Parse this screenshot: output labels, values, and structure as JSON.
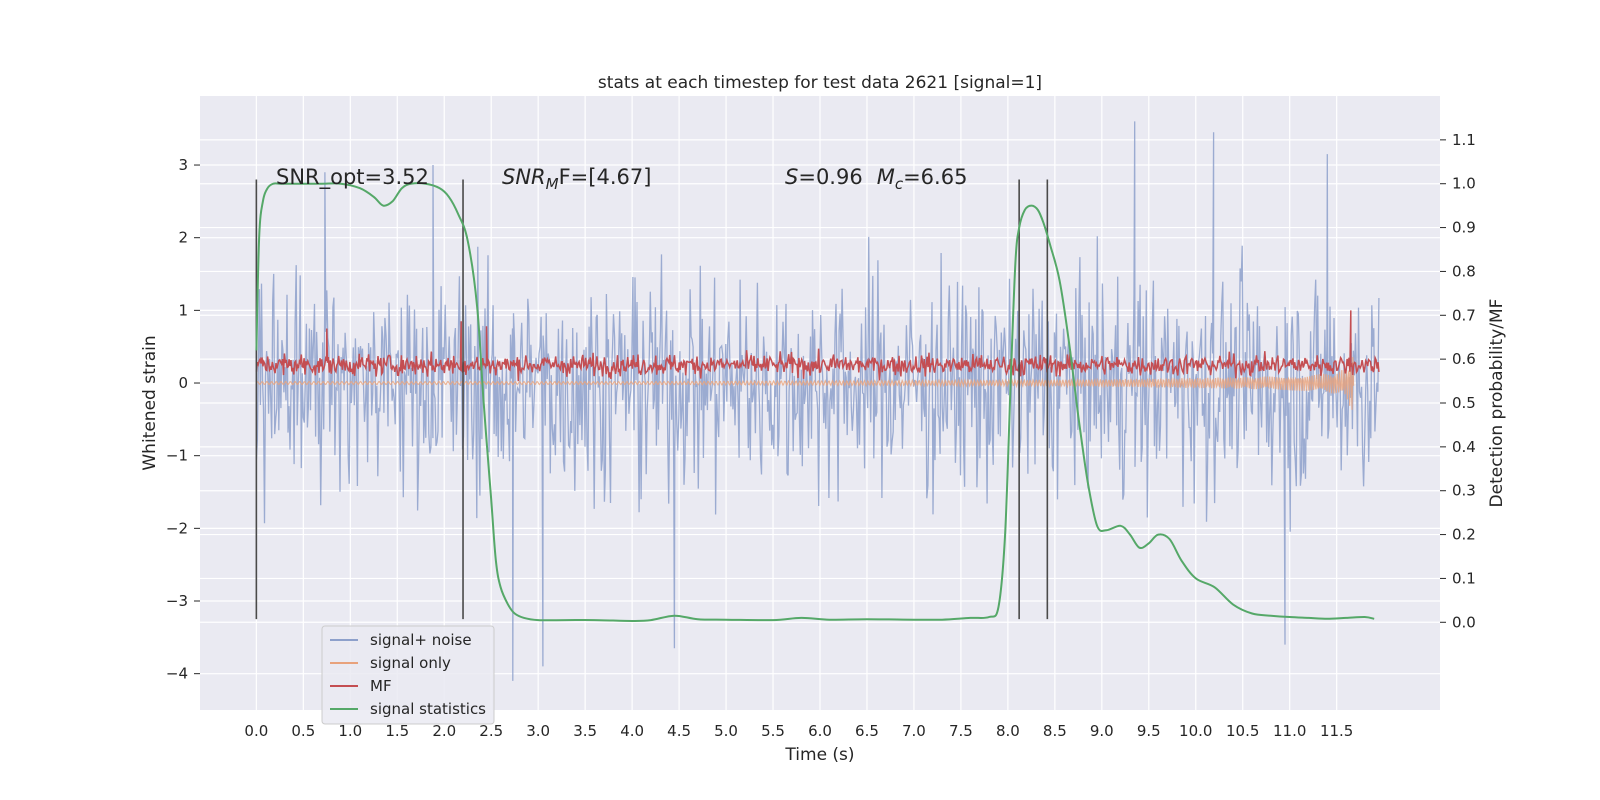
{
  "chart_data": {
    "type": "line",
    "title": "stats at each timestep for test data 2621 [signal=1]",
    "xlabel": "Time (s)",
    "ylabel": "Whitened strain",
    "y2label": "Detection probability/MF",
    "xlim": [
      -0.6,
      12.6
    ],
    "ylim": [
      -4.5,
      3.95
    ],
    "y2lim": [
      -0.2,
      1.2
    ],
    "xticks": [
      0.0,
      0.5,
      1.0,
      1.5,
      2.0,
      2.5,
      3.0,
      3.5,
      4.0,
      4.5,
      5.0,
      5.5,
      6.0,
      6.5,
      7.0,
      7.5,
      8.0,
      8.5,
      9.0,
      9.5,
      10.0,
      10.5,
      11.0,
      11.5
    ],
    "xtick_labels": [
      "0.0",
      "0.5",
      "1.0",
      "1.5",
      "2.0",
      "2.5",
      "3.0",
      "3.5",
      "4.0",
      "4.5",
      "5.0",
      "5.5",
      "6.0",
      "6.5",
      "7.0",
      "7.5",
      "8.0",
      "8.5",
      "9.0",
      "9.5",
      "10.0",
      "10.5",
      "11.0",
      "11.5"
    ],
    "yticks": [
      -4,
      -3,
      -2,
      -1,
      0,
      1,
      2,
      3
    ],
    "ytick_labels": [
      "−4",
      "−3",
      "−2",
      "−1",
      "0",
      "1",
      "2",
      "3"
    ],
    "y2ticks": [
      0.0,
      0.1,
      0.2,
      0.3,
      0.4,
      0.5,
      0.6,
      0.7,
      0.8,
      0.9,
      1.0,
      1.1
    ],
    "y2tick_labels": [
      "0.0",
      "0.1",
      "0.2",
      "0.3",
      "0.4",
      "0.5",
      "0.6",
      "0.7",
      "0.8",
      "0.9",
      "1.0",
      "1.1"
    ],
    "grid": true,
    "legend_position": "lower-left",
    "annotations": {
      "snr_opt": "SNR_opt=3.52",
      "snr_mf_pre": "SNR",
      "snr_mf_sub": "M",
      "snr_mf_post": "F=[4.67]",
      "s_label": "S",
      "s_value": "=0.96",
      "mc_label": "M",
      "mc_sub": "c",
      "mc_value": "=6.65"
    },
    "vertical_markers_x": [
      0.0,
      2.2,
      8.12,
      8.42
    ],
    "vertical_marker_range": [
      -3.25,
      2.8
    ],
    "series": [
      {
        "name": "signal+ noise",
        "color": "#8da0cb",
        "axis": "left",
        "description_envelope_x": [
          0.0,
          1.0,
          2.0,
          3.0,
          4.0,
          5.0,
          6.0,
          7.0,
          8.0,
          9.0,
          10.0,
          11.0,
          11.95
        ],
        "upper_typical": [
          2.2,
          2.3,
          2.3,
          2.3,
          2.3,
          2.3,
          2.3,
          2.3,
          2.3,
          2.3,
          2.3,
          2.3,
          2.3
        ],
        "lower_typical": [
          -2.3,
          -2.3,
          -2.3,
          -2.3,
          -2.3,
          -2.3,
          -2.3,
          -2.3,
          -2.3,
          -2.3,
          -2.3,
          -2.3,
          -2.3
        ],
        "peaks": [
          [
            0.73,
            2.9
          ],
          [
            1.88,
            3.0
          ],
          [
            9.35,
            3.6
          ],
          [
            10.19,
            3.45
          ],
          [
            11.4,
            3.15
          ],
          [
            2.73,
            -4.1
          ],
          [
            3.05,
            -3.9
          ],
          [
            4.45,
            -3.65
          ],
          [
            10.95,
            -3.6
          ]
        ]
      },
      {
        "name": "signal only",
        "color": "#e8a27c",
        "axis": "left",
        "x": [
          0.0,
          2.0,
          4.0,
          6.0,
          8.0,
          9.0,
          10.0,
          10.5,
          11.0,
          11.3,
          11.5,
          11.6,
          11.65,
          11.68
        ],
        "amplitude": [
          0.02,
          0.02,
          0.02,
          0.03,
          0.04,
          0.05,
          0.07,
          0.08,
          0.1,
          0.12,
          0.15,
          0.2,
          0.35,
          0.45
        ]
      },
      {
        "name": "MF",
        "color": "#c44e52",
        "axis": "left",
        "center": 0.25,
        "typical_upper": 0.5,
        "typical_lower": 0.05,
        "peaks": [
          [
            0.75,
            0.75
          ],
          [
            2.18,
            0.85
          ],
          [
            2.45,
            0.78
          ],
          [
            11.65,
            1.0
          ]
        ]
      },
      {
        "name": "signal statistics",
        "color": "#55a868",
        "axis": "right",
        "x": [
          0.0,
          0.03,
          0.07,
          0.12,
          0.18,
          0.25,
          0.35,
          0.5,
          0.7,
          0.9,
          1.1,
          1.25,
          1.35,
          1.45,
          1.55,
          1.65,
          1.8,
          1.95,
          2.05,
          2.15,
          2.25,
          2.35,
          2.42,
          2.5,
          2.55,
          2.6,
          2.68,
          2.75,
          2.85,
          3.0,
          3.3,
          3.6,
          4.0,
          4.2,
          4.45,
          4.7,
          5.0,
          5.5,
          5.8,
          6.1,
          6.5,
          7.0,
          7.3,
          7.6,
          7.8,
          7.9,
          7.97,
          8.03,
          8.08,
          8.12,
          8.18,
          8.25,
          8.32,
          8.38,
          8.45,
          8.55,
          8.65,
          8.75,
          8.85,
          8.95,
          9.05,
          9.2,
          9.3,
          9.4,
          9.5,
          9.6,
          9.72,
          9.85,
          10.0,
          10.2,
          10.4,
          10.6,
          10.8,
          11.0,
          11.2,
          11.4,
          11.6,
          11.8,
          11.9
        ],
        "values": [
          0.62,
          0.88,
          0.96,
          0.99,
          1.0,
          1.0,
          1.0,
          1.0,
          1.0,
          1.0,
          0.99,
          0.97,
          0.95,
          0.96,
          0.99,
          1.0,
          1.0,
          0.99,
          0.97,
          0.93,
          0.87,
          0.72,
          0.5,
          0.28,
          0.14,
          0.08,
          0.04,
          0.02,
          0.01,
          0.005,
          0.005,
          0.005,
          0.003,
          0.005,
          0.015,
          0.007,
          0.006,
          0.005,
          0.01,
          0.006,
          0.007,
          0.006,
          0.006,
          0.01,
          0.012,
          0.035,
          0.2,
          0.55,
          0.82,
          0.9,
          0.94,
          0.95,
          0.94,
          0.91,
          0.86,
          0.78,
          0.64,
          0.47,
          0.32,
          0.22,
          0.21,
          0.22,
          0.2,
          0.17,
          0.18,
          0.2,
          0.19,
          0.14,
          0.1,
          0.08,
          0.04,
          0.02,
          0.015,
          0.012,
          0.01,
          0.008,
          0.01,
          0.012,
          0.008
        ]
      }
    ]
  }
}
